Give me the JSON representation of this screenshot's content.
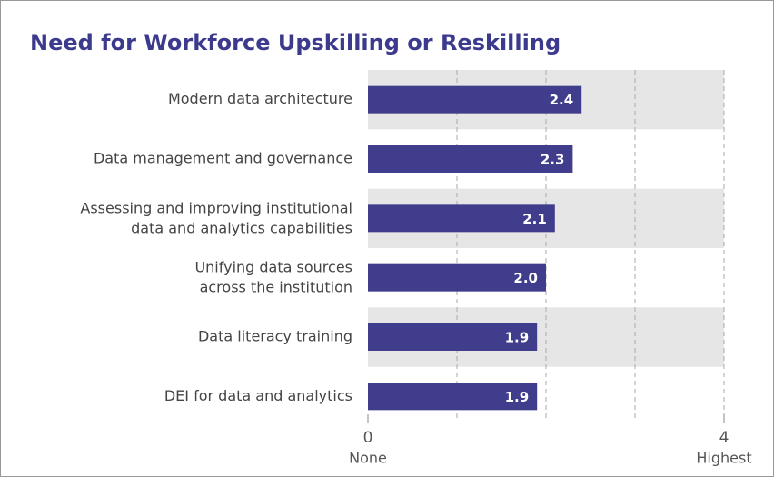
{
  "chart_data": {
    "type": "bar",
    "orientation": "horizontal",
    "title": "Need for Workforce Upskilling or Reskilling",
    "categories": [
      "Modern data architecture",
      "Data management and governance",
      "Assessing and improving institutional\ndata and analytics capabilities",
      "Unifying data sources\nacross the institution",
      "Data literacy training",
      "DEI for data and analytics"
    ],
    "values": [
      2.4,
      2.3,
      2.1,
      2.0,
      1.9,
      1.9
    ],
    "value_labels": [
      "2.4",
      "2.3",
      "2.1",
      "2.0",
      "1.9",
      "1.9"
    ],
    "color": "#3f3d8c",
    "xlim": [
      0,
      4
    ],
    "xticks": [
      0,
      {
        "value": 1,
        "label": null
      },
      {
        "value": 2,
        "label": null
      },
      {
        "value": 3,
        "label": null
      },
      4
    ],
    "x_end_labels": [
      "None",
      "Highest"
    ],
    "grid": true
  }
}
